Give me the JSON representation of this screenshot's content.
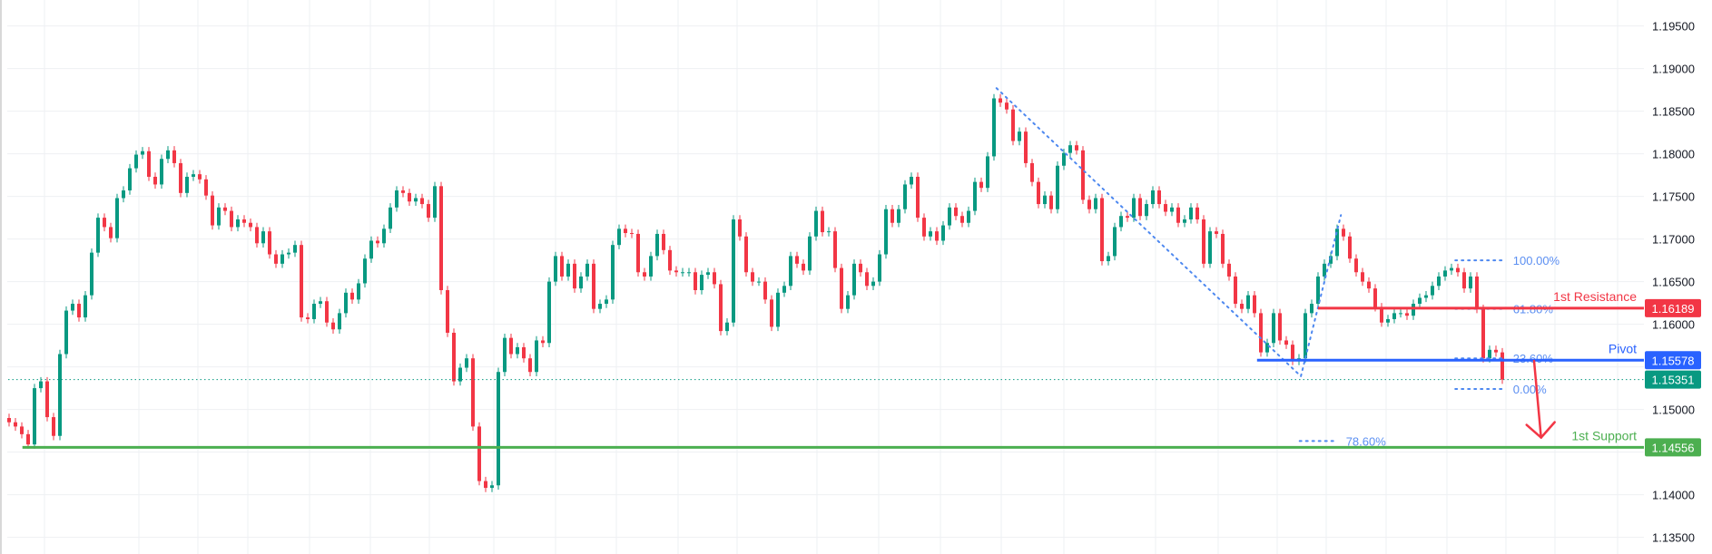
{
  "chart_data": {
    "type": "candlestick",
    "grid": true,
    "colors": {
      "up": "#089981",
      "down": "#f23645",
      "grid": "#f0f3fa",
      "axis_text": "#131722"
    },
    "y_axis": {
      "range": [
        1.135,
        1.195
      ],
      "ticks": [
        "1.19500",
        "1.19000",
        "1.18500",
        "1.18000",
        "1.17500",
        "1.17000",
        "1.16500",
        "1.16000",
        "1.15500",
        "1.15000",
        "1.14500",
        "1.14000",
        "1.13500"
      ],
      "hidden_ticks": [
        "1.15500",
        "1.14500"
      ]
    },
    "close": [
      1.1485,
      1.148,
      1.1471,
      1.1459,
      1.1525,
      1.1533,
      1.1491,
      1.1469,
      1.1565,
      1.1616,
      1.1624,
      1.1608,
      1.1634,
      1.1684,
      1.1725,
      1.1714,
      1.1701,
      1.1748,
      1.1757,
      1.1783,
      1.1799,
      1.1803,
      1.1773,
      1.1764,
      1.1794,
      1.1804,
      1.1789,
      1.1754,
      1.1773,
      1.1776,
      1.177,
      1.1751,
      1.1716,
      1.1737,
      1.1733,
      1.1714,
      1.1723,
      1.1719,
      1.1714,
      1.1695,
      1.1709,
      1.1682,
      1.1671,
      1.1682,
      1.1684,
      1.1693,
      1.1608,
      1.1606,
      1.1624,
      1.1627,
      1.1602,
      1.1594,
      1.1613,
      1.1637,
      1.1629,
      1.1648,
      1.1677,
      1.1698,
      1.1695,
      1.1712,
      1.1737,
      1.1757,
      1.1754,
      1.1744,
      1.1748,
      1.1741,
      1.1725,
      1.1762,
      1.164,
      1.159,
      1.1533,
      1.1549,
      1.156,
      1.148,
      1.1416,
      1.1408,
      1.1411,
      1.1544,
      1.1584,
      1.1565,
      1.1573,
      1.156,
      1.1544,
      1.1581,
      1.1578,
      1.165,
      1.168,
      1.1656,
      1.1671,
      1.1642,
      1.1656,
      1.1671,
      1.1618,
      1.1624,
      1.1629,
      1.1693,
      1.1712,
      1.1707,
      1.1706,
      1.1661,
      1.1656,
      1.168,
      1.1706,
      1.1687,
      1.1663,
      1.1661,
      1.1661,
      1.1661,
      1.164,
      1.1658,
      1.1661,
      1.1647,
      1.1592,
      1.1602,
      1.1723,
      1.1703,
      1.1661,
      1.165,
      1.165,
      1.1629,
      1.1597,
      1.1637,
      1.1645,
      1.168,
      1.1671,
      1.1663,
      1.1703,
      1.1733,
      1.1708,
      1.1709,
      1.1666,
      1.1618,
      1.1634,
      1.1671,
      1.1661,
      1.1645,
      1.165,
      1.1682,
      1.1735,
      1.1719,
      1.1735,
      1.1764,
      1.1773,
      1.1725,
      1.1703,
      1.1709,
      1.1698,
      1.1716,
      1.1737,
      1.1727,
      1.1719,
      1.1733,
      1.1767,
      1.176,
      1.1797,
      1.1865,
      1.186,
      1.1852,
      1.1815,
      1.1826,
      1.1789,
      1.1767,
      1.1741,
      1.1751,
      1.1735,
      1.1786,
      1.1801,
      1.181,
      1.1804,
      1.1746,
      1.1735,
      1.1748,
      1.1674,
      1.168,
      1.1714,
      1.1727,
      1.1725,
      1.1748,
      1.1727,
      1.1741,
      1.1757,
      1.1741,
      1.1732,
      1.1737,
      1.1719,
      1.1723,
      1.1737,
      1.1723,
      1.1671,
      1.1709,
      1.1706,
      1.1671,
      1.1656,
      1.1624,
      1.1618,
      1.1634,
      1.1613,
      1.1567,
      1.1578,
      1.1613,
      1.1581,
      1.1576,
      1.1557,
      1.156,
      1.1613,
      1.1624,
      1.1656,
      1.1671,
      1.168,
      1.1712,
      1.1703,
      1.1677,
      1.1661,
      1.165,
      1.1642,
      1.162,
      1.1602,
      1.1606,
      1.1613,
      1.1613,
      1.161,
      1.1624,
      1.1631,
      1.1634,
      1.1645,
      1.1656,
      1.1663,
      1.1666,
      1.1661,
      1.1642,
      1.1656,
      1.1618,
      1.156,
      1.157,
      1.1567,
      1.1535
    ],
    "last_price": {
      "value": "1.15351",
      "color": "#089981"
    },
    "levels": [
      {
        "name": "1st Resistance",
        "value": "1.16189",
        "color": "#f23645",
        "from_index": 206
      },
      {
        "name": "Pivot",
        "value": "1.15578",
        "color": "#2962ff",
        "from_index": 196.4
      },
      {
        "name": "1st Support",
        "value": "1.14556",
        "color": "#4caf50",
        "from_index": 2.1
      }
    ],
    "fibonacci": {
      "color": "#4d88f0",
      "levels": [
        {
          "label": "100.00%",
          "price": 1.1675,
          "from_index": 227.6,
          "to_index": 235.4
        },
        {
          "label": "61.80%",
          "price": 1.1618,
          "from_index": 227.6,
          "to_index": 235.4
        },
        {
          "label": "23.60%",
          "price": 1.156,
          "from_index": 227.6,
          "to_index": 235.4
        },
        {
          "label": "0.00%",
          "price": 1.1524,
          "from_index": 227.6,
          "to_index": 235.4
        },
        {
          "label": "78.60%",
          "price": 1.1463,
          "from_index": 203.1,
          "to_index": 209.1
        }
      ],
      "zigzag": [
        [
          155.4,
          1.1877
        ],
        [
          203.3,
          1.1539
        ],
        [
          209.6,
          1.1728
        ]
      ]
    },
    "arrow": {
      "from": [
        240,
        1.1557
      ],
      "to": [
        241.1,
        1.1467
      ],
      "color": "#f23645"
    }
  }
}
